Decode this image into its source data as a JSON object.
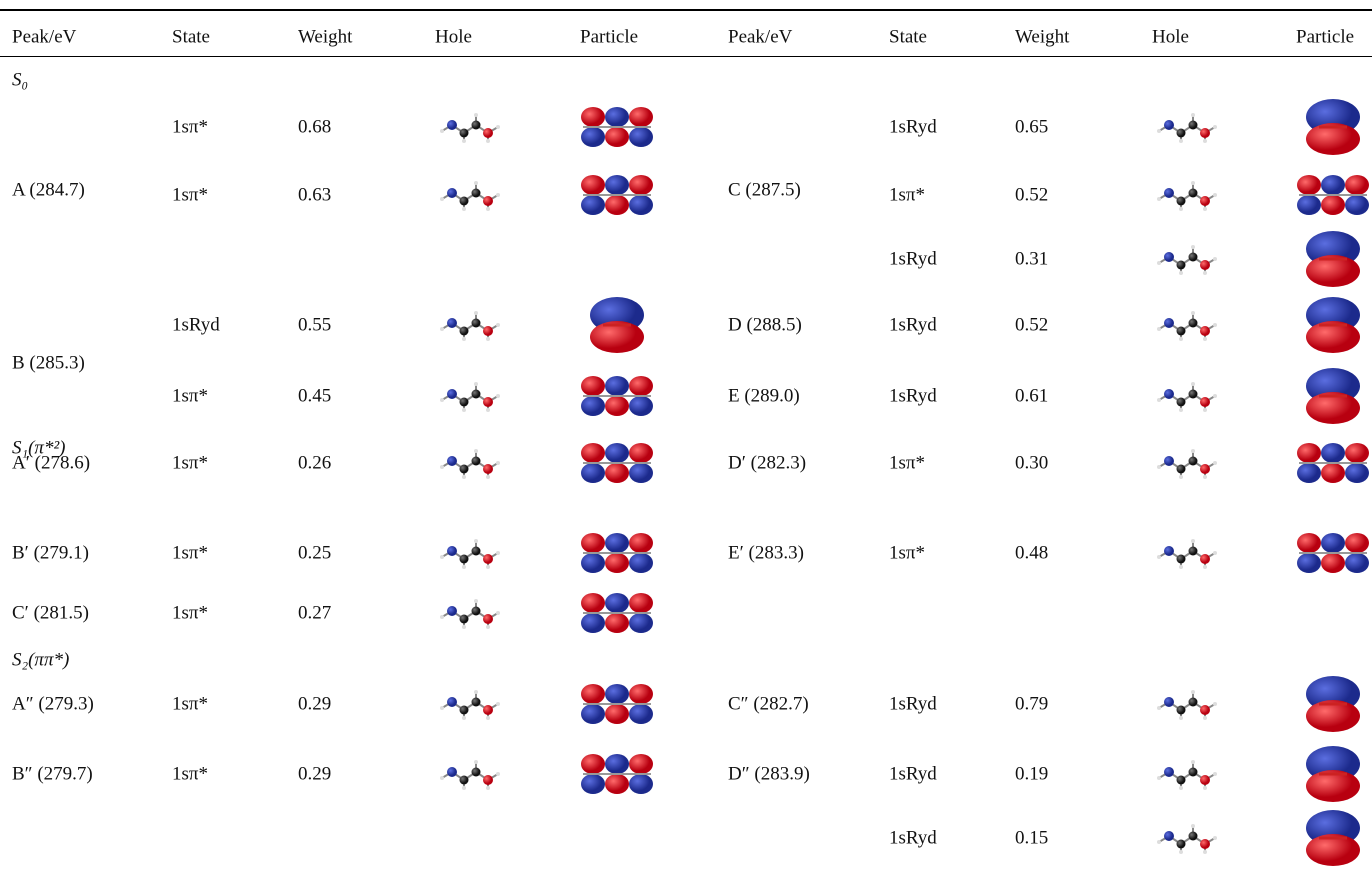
{
  "header": [
    "Peak/eV",
    "State",
    "Weight",
    "Hole",
    "Particle",
    "Peak/eV",
    "State",
    "Weight",
    "Hole",
    "Particle"
  ],
  "sections": [
    {
      "label": "S₀",
      "rows": [
        {
          "left": {
            "state": "1sπ*",
            "weight": "0.68"
          },
          "right": {
            "state": "1sRyd",
            "weight": "0.65"
          }
        },
        {
          "left": {
            "peak": "A (284.7)",
            "state": "1sπ*",
            "weight": "0.63"
          },
          "right": {
            "peak": "C (287.5)",
            "state": "1sπ*",
            "weight": "0.52"
          }
        },
        {
          "right": {
            "state": "1sRyd",
            "weight": "0.31"
          }
        },
        {
          "left": {
            "peak": "B (285.3)",
            "state": "1sRyd",
            "weight": "0.55"
          },
          "right": {
            "peak": "D (288.5)",
            "state": "1sRyd",
            "weight": "0.52"
          }
        },
        {
          "left": {
            "state": "1sπ*",
            "weight": "0.45"
          },
          "right": {
            "peak": "E (289.0)",
            "state": "1sRyd",
            "weight": "0.61"
          }
        }
      ]
    },
    {
      "label": "S₁(π*²)",
      "rows": [
        {
          "left": {
            "peak": "A′ (278.6)",
            "state": "1sπ*",
            "weight": "0.26"
          },
          "right": {
            "peak": "D′ (282.3)",
            "state": "1sπ*",
            "weight": "0.30"
          }
        },
        {
          "left": {
            "peak": "B′ (279.1)",
            "state": "1sπ*",
            "weight": "0.25"
          },
          "right": {
            "peak": "E′ (283.3)",
            "state": "1sπ*",
            "weight": "0.48"
          }
        },
        {
          "left": {
            "peak": "C′ (281.5)",
            "state": "1sπ*",
            "weight": "0.27"
          }
        }
      ]
    },
    {
      "label": "S₂(ππ*)",
      "rows": [
        {
          "left": {
            "peak": "A″ (279.3)",
            "state": "1sπ*",
            "weight": "0.29"
          },
          "right": {
            "peak": "C″ (282.7)",
            "state": "1sRyd",
            "weight": "0.79"
          }
        },
        {
          "left": {
            "peak": "B″ (279.7)",
            "state": "1sπ*",
            "weight": "0.29"
          },
          "right": {
            "peak": "D″ (283.9)",
            "state": "1sRyd",
            "weight": "0.19"
          }
        },
        {
          "right": {
            "state": "1sRyd",
            "weight": "0.15"
          }
        }
      ]
    }
  ]
}
